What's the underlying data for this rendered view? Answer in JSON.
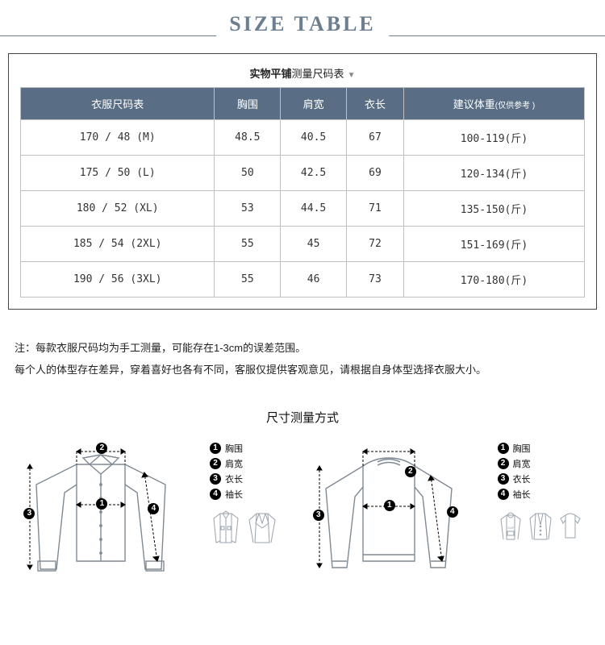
{
  "title": "SIZE TABLE",
  "subtitle_bold": "实物平铺",
  "subtitle_rest": "测量尺码表",
  "table": {
    "header_bg": "#596e84",
    "header_fg": "#ffffff",
    "border_color": "#c0c0c0",
    "columns": [
      "衣服尺码表",
      "胸围",
      "肩宽",
      "衣长",
      "建议体重(仅供参考 )"
    ],
    "col_small_suffix_index": 4,
    "rows": [
      [
        "170 / 48 (M)",
        "48.5",
        "40.5",
        "67",
        "100-119(斤)"
      ],
      [
        "175 / 50 (L)",
        "50",
        "42.5",
        "69",
        "120-134(斤)"
      ],
      [
        "180 / 52 (XL)",
        "53",
        "44.5",
        "71",
        "135-150(斤)"
      ],
      [
        "185 / 54 (2XL)",
        "55",
        "45",
        "72",
        "151-169(斤)"
      ],
      [
        "190 / 56 (3XL)",
        "55",
        "46",
        "73",
        "170-180(斤)"
      ]
    ]
  },
  "notes": {
    "line1": "注：每款衣服尺码均为手工测量，可能存在1-3cm的误差范围。",
    "line2": "每个人的体型存在差异，穿着喜好也各有不同，客服仅提供客观意见，请根据自身体型选择衣服大小。"
  },
  "measure_title": "尺寸测量方式",
  "legend_items": [
    {
      "num": "1",
      "label": "胸围"
    },
    {
      "num": "2",
      "label": "肩宽"
    },
    {
      "num": "3",
      "label": "衣长"
    },
    {
      "num": "4",
      "label": "袖长"
    }
  ],
  "diagram": {
    "stroke": "#808a94",
    "dash": "4,3",
    "arrow_color": "#000000"
  },
  "colors": {
    "title": "#6b7f91",
    "rule": "#6b7f91",
    "text": "#222222",
    "bg": "#ffffff"
  }
}
